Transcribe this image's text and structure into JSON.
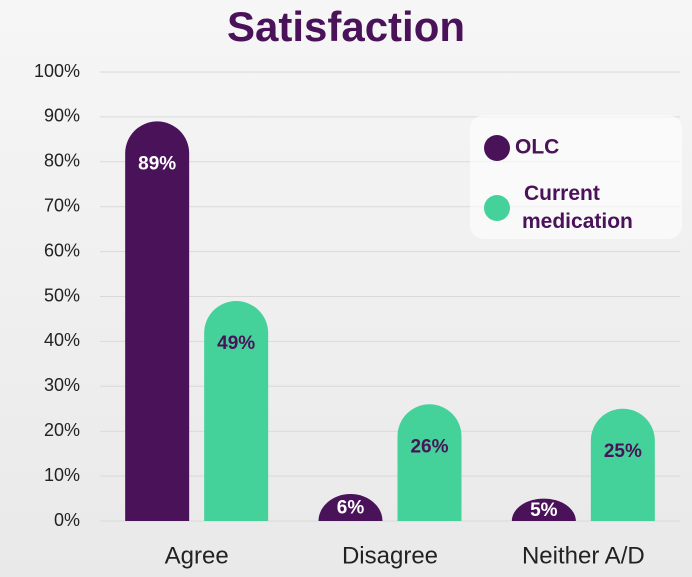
{
  "chart_data": {
    "type": "bar",
    "title": "Satisfaction",
    "categories": [
      "Agree",
      "Disagree",
      "Neither A/D"
    ],
    "series": [
      {
        "name": "OLC",
        "color": "#4a1259",
        "values": [
          89,
          6,
          5
        ],
        "value_labels": [
          "89%",
          "6%",
          "5%"
        ]
      },
      {
        "name": "Current medication",
        "color": "#45d19a",
        "values": [
          49,
          26,
          25
        ],
        "value_labels": [
          "49%",
          "26%",
          "25%"
        ]
      }
    ],
    "ylim": [
      0,
      100
    ],
    "yticks": [
      {
        "value": 0,
        "label": "0%"
      },
      {
        "value": 10,
        "label": "10%"
      },
      {
        "value": 20,
        "label": "20%"
      },
      {
        "value": 30,
        "label": "30%"
      },
      {
        "value": 40,
        "label": "40%"
      },
      {
        "value": 50,
        "label": "50%"
      },
      {
        "value": 60,
        "label": "60%"
      },
      {
        "value": 70,
        "label": "70%"
      },
      {
        "value": 80,
        "label": "80%"
      },
      {
        "value": 90,
        "label": "90%"
      },
      {
        "value": 100,
        "label": "100%"
      }
    ],
    "grid": true,
    "legend": "top-right"
  }
}
